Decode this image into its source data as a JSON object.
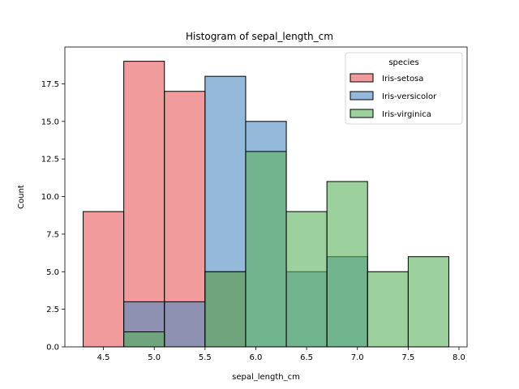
{
  "chart_data": {
    "type": "histogram",
    "title": "Histogram of sepal_length_cm",
    "xlabel": "sepal_length_cm",
    "ylabel": "Count",
    "xlim": [
      4.12,
      8.08
    ],
    "ylim": [
      0,
      19.95
    ],
    "xticks": [
      4.5,
      5.0,
      5.5,
      6.0,
      6.5,
      7.0,
      7.5,
      8.0
    ],
    "xtick_labels": [
      "4.5",
      "5.0",
      "5.5",
      "6.0",
      "6.5",
      "7.0",
      "7.5",
      "8.0"
    ],
    "yticks": [
      0,
      2.5,
      5,
      7.5,
      10,
      12.5,
      15,
      17.5
    ],
    "ytick_labels": [
      "0.0",
      "2.5",
      "5.0",
      "7.5",
      "10.0",
      "12.5",
      "15.0",
      "17.5"
    ],
    "bin_edges": [
      4.3,
      4.7,
      5.1,
      5.5,
      5.9,
      6.3,
      6.7,
      7.1,
      7.5,
      7.9
    ],
    "legend": {
      "title": "species",
      "placement": "top-right"
    },
    "series": [
      {
        "name": "Iris-setosa",
        "color": "#e8585a",
        "counts": [
          9,
          19,
          17,
          5,
          0,
          0,
          0,
          0,
          0
        ]
      },
      {
        "name": "Iris-versicolor",
        "color": "#4f8ac2",
        "counts": [
          0,
          3,
          3,
          18,
          15,
          5,
          6,
          0,
          0
        ]
      },
      {
        "name": "Iris-virginica",
        "color": "#5ab05a",
        "counts": [
          0,
          1,
          0,
          5,
          13,
          9,
          11,
          5,
          6
        ]
      }
    ]
  }
}
